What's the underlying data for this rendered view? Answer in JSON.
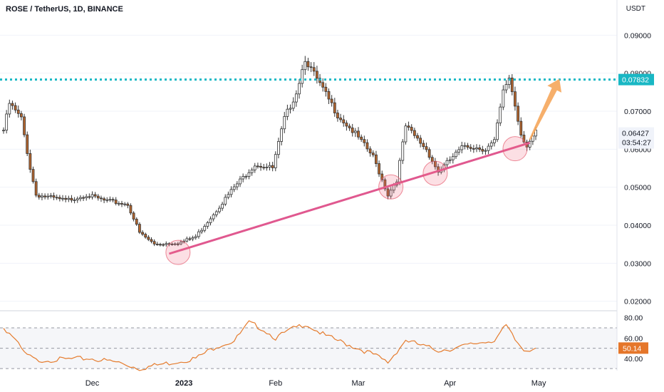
{
  "header": {
    "title": "ROSE / TetherUS, 1D, BINANCE",
    "currency": "USDT"
  },
  "colors": {
    "up": "#ffffff",
    "down": "#b5662e",
    "wick": "#333333",
    "trendline": "#e0588f",
    "resistance": "#19b7c4",
    "arrow": "#f5a65b",
    "rsi": "#e57c2e",
    "tag_cyan": "#19b7c4",
    "tag_rsi": "#e5762a"
  },
  "price_axis": {
    "ticks": [
      "0.09000",
      "0.08000",
      "0.07000",
      "0.06000",
      "0.05000",
      "0.04000",
      "0.03000",
      "0.02000"
    ],
    "resistance_label": "0.07832",
    "current_price": "0.06427",
    "countdown": "03:54:27"
  },
  "time_axis": {
    "labels": [
      {
        "text": "Dec",
        "bold": false
      },
      {
        "text": "2023",
        "bold": true
      },
      {
        "text": "Feb",
        "bold": false
      },
      {
        "text": "Mar",
        "bold": false
      },
      {
        "text": "Apr",
        "bold": false
      },
      {
        "text": "May",
        "bold": false
      }
    ]
  },
  "rsi_axis": {
    "ticks": [
      "80.00",
      "60.00",
      "40.00"
    ],
    "current": "50.14"
  },
  "chart_data": {
    "type": "candlestick",
    "ylim": [
      0.0175,
      0.0955
    ],
    "resistance": 0.07832,
    "trendline": {
      "start": {
        "date": "2022-12-27",
        "price": 0.0325
      },
      "end": {
        "date": "2023-04-28",
        "price": 0.0617
      }
    },
    "pivot_circles": [
      "2022-12-30",
      "2023-03-12",
      "2023-03-27",
      "2023-04-23"
    ],
    "anchors": [
      {
        "date": "2022-11-01",
        "price": 0.065
      },
      {
        "date": "2022-11-03",
        "price": 0.072
      },
      {
        "date": "2022-11-07",
        "price": 0.068
      },
      {
        "date": "2022-11-10",
        "price": 0.055
      },
      {
        "date": "2022-11-12",
        "price": 0.048
      },
      {
        "date": "2022-11-22",
        "price": 0.0465
      },
      {
        "date": "2022-11-29",
        "price": 0.048
      },
      {
        "date": "2022-12-05",
        "price": 0.0465
      },
      {
        "date": "2022-12-13",
        "price": 0.0455
      },
      {
        "date": "2022-12-17",
        "price": 0.038
      },
      {
        "date": "2022-12-22",
        "price": 0.035
      },
      {
        "date": "2022-12-31",
        "price": 0.0355
      },
      {
        "date": "2023-01-05",
        "price": 0.037
      },
      {
        "date": "2023-01-14",
        "price": 0.046
      },
      {
        "date": "2023-01-18",
        "price": 0.05
      },
      {
        "date": "2023-01-25",
        "price": 0.056
      },
      {
        "date": "2023-01-31",
        "price": 0.055
      },
      {
        "date": "2023-02-04",
        "price": 0.068
      },
      {
        "date": "2023-02-08",
        "price": 0.075
      },
      {
        "date": "2023-02-11",
        "price": 0.084
      },
      {
        "date": "2023-02-13",
        "price": 0.081
      },
      {
        "date": "2023-02-16",
        "price": 0.077
      },
      {
        "date": "2023-02-22",
        "price": 0.069
      },
      {
        "date": "2023-02-28",
        "price": 0.064
      },
      {
        "date": "2023-03-06",
        "price": 0.058
      },
      {
        "date": "2023-03-11",
        "price": 0.048
      },
      {
        "date": "2023-03-14",
        "price": 0.052
      },
      {
        "date": "2023-03-17",
        "price": 0.066
      },
      {
        "date": "2023-03-24",
        "price": 0.06
      },
      {
        "date": "2023-03-28",
        "price": 0.054
      },
      {
        "date": "2023-04-02",
        "price": 0.058
      },
      {
        "date": "2023-04-06",
        "price": 0.061
      },
      {
        "date": "2023-04-13",
        "price": 0.06
      },
      {
        "date": "2023-04-16",
        "price": 0.062
      },
      {
        "date": "2023-04-19",
        "price": 0.075
      },
      {
        "date": "2023-04-21",
        "price": 0.079
      },
      {
        "date": "2023-04-25",
        "price": 0.064
      },
      {
        "date": "2023-04-27",
        "price": 0.061
      },
      {
        "date": "2023-04-30",
        "price": 0.0643
      }
    ],
    "rsi": {
      "ylim": [
        28,
        84
      ],
      "bands": [
        70,
        50,
        30
      ],
      "anchors": [
        {
          "date": "2022-11-01",
          "value": 70
        },
        {
          "date": "2022-11-04",
          "value": 62
        },
        {
          "date": "2022-11-08",
          "value": 45
        },
        {
          "date": "2022-11-12",
          "value": 38
        },
        {
          "date": "2022-11-30",
          "value": 40
        },
        {
          "date": "2022-12-10",
          "value": 36
        },
        {
          "date": "2022-12-17",
          "value": 30
        },
        {
          "date": "2022-12-22",
          "value": 33
        },
        {
          "date": "2023-01-05",
          "value": 40
        },
        {
          "date": "2023-01-12",
          "value": 52
        },
        {
          "date": "2023-01-18",
          "value": 57
        },
        {
          "date": "2023-01-23",
          "value": 75
        },
        {
          "date": "2023-01-27",
          "value": 70
        },
        {
          "date": "2023-02-01",
          "value": 60
        },
        {
          "date": "2023-02-06",
          "value": 68
        },
        {
          "date": "2023-02-11",
          "value": 74
        },
        {
          "date": "2023-02-18",
          "value": 62
        },
        {
          "date": "2023-02-27",
          "value": 52
        },
        {
          "date": "2023-03-06",
          "value": 44
        },
        {
          "date": "2023-03-11",
          "value": 36
        },
        {
          "date": "2023-03-17",
          "value": 58
        },
        {
          "date": "2023-03-23",
          "value": 52
        },
        {
          "date": "2023-03-28",
          "value": 48
        },
        {
          "date": "2023-04-03",
          "value": 50
        },
        {
          "date": "2023-04-10",
          "value": 55
        },
        {
          "date": "2023-04-16",
          "value": 58
        },
        {
          "date": "2023-04-20",
          "value": 72
        },
        {
          "date": "2023-04-23",
          "value": 58
        },
        {
          "date": "2023-04-26",
          "value": 48
        },
        {
          "date": "2023-04-30",
          "value": 50.14
        }
      ]
    }
  }
}
